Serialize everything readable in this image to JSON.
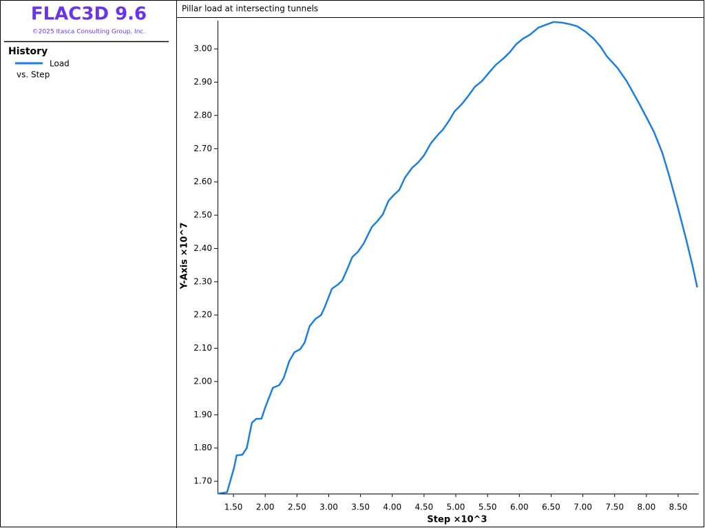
{
  "app": {
    "title": "FLAC3D 9.6",
    "copyright": "©2025 Itasca Consulting Group, Inc."
  },
  "sidebar": {
    "heading": "History",
    "vs": "vs. Step"
  },
  "chart_data": {
    "type": "line",
    "title": "Pillar load at intersecting tunnels",
    "xlabel": "Step ×10^3",
    "ylabel": "Y-Axis ×10^7",
    "x": [
      1.25,
      1.4,
      1.51,
      1.55,
      1.64,
      1.71,
      1.79,
      1.86,
      1.94,
      2.01,
      2.12,
      2.22,
      2.29,
      2.38,
      2.46,
      2.55,
      2.62,
      2.7,
      2.79,
      2.88,
      2.94,
      3.05,
      3.14,
      3.21,
      3.29,
      3.37,
      3.46,
      3.55,
      3.68,
      3.76,
      3.85,
      3.94,
      4.02,
      4.11,
      4.2,
      4.31,
      4.41,
      4.5,
      4.61,
      4.72,
      4.8,
      4.89,
      4.98,
      5.09,
      5.19,
      5.3,
      5.41,
      5.52,
      5.63,
      5.76,
      5.85,
      5.95,
      6.06,
      6.17,
      6.3,
      6.41,
      6.54,
      6.67,
      6.8,
      6.91,
      7.04,
      7.17,
      7.28,
      7.38,
      7.54,
      7.69,
      7.86,
      8.01,
      8.12,
      8.25,
      8.36,
      8.49,
      8.62,
      8.73,
      8.8
    ],
    "series": [
      {
        "name": "Load",
        "color": "#1a7de0",
        "values": [
          1.663,
          1.667,
          1.741,
          1.778,
          1.78,
          1.8,
          1.876,
          1.888,
          1.888,
          1.927,
          1.981,
          1.989,
          2.01,
          2.062,
          2.088,
          2.097,
          2.117,
          2.167,
          2.188,
          2.2,
          2.225,
          2.279,
          2.291,
          2.303,
          2.337,
          2.374,
          2.39,
          2.415,
          2.465,
          2.481,
          2.502,
          2.543,
          2.56,
          2.576,
          2.613,
          2.642,
          2.659,
          2.68,
          2.717,
          2.742,
          2.758,
          2.783,
          2.812,
          2.833,
          2.857,
          2.886,
          2.903,
          2.928,
          2.952,
          2.973,
          2.99,
          3.014,
          3.031,
          3.043,
          3.064,
          3.072,
          3.081,
          3.079,
          3.074,
          3.068,
          3.052,
          3.031,
          3.006,
          2.977,
          2.944,
          2.903,
          2.845,
          2.791,
          2.75,
          2.688,
          2.618,
          2.527,
          2.432,
          2.345,
          2.283
        ]
      }
    ],
    "xlim": [
      1.25,
      8.825
    ],
    "ylim": [
      1.663,
      3.085
    ],
    "xticks": [
      {
        "value": 1.5,
        "label": "1.50"
      },
      {
        "value": 2,
        "label": "2.00"
      },
      {
        "value": 2.5,
        "label": "2.50"
      },
      {
        "value": 3,
        "label": "3.00"
      },
      {
        "value": 3.5,
        "label": "3.50"
      },
      {
        "value": 4,
        "label": "4.00"
      },
      {
        "value": 4.5,
        "label": "4.50"
      },
      {
        "value": 5,
        "label": "5.00"
      },
      {
        "value": 5.5,
        "label": "5.50"
      },
      {
        "value": 6,
        "label": "6.00"
      },
      {
        "value": 6.5,
        "label": "6.50"
      },
      {
        "value": 7,
        "label": "7.00"
      },
      {
        "value": 7.5,
        "label": "7.50"
      },
      {
        "value": 8,
        "label": "8.00"
      },
      {
        "value": 8.5,
        "label": "8.50"
      }
    ],
    "yticks": [
      {
        "value": 1.7,
        "label": "1.70"
      },
      {
        "value": 1.8,
        "label": "1.80"
      },
      {
        "value": 1.9,
        "label": "1.90"
      },
      {
        "value": 2,
        "label": "2.00"
      },
      {
        "value": 2.1,
        "label": "2.10"
      },
      {
        "value": 2.2,
        "label": "2.20"
      },
      {
        "value": 2.3,
        "label": "2.30"
      },
      {
        "value": 2.4,
        "label": "2.40"
      },
      {
        "value": 2.5,
        "label": "2.50"
      },
      {
        "value": 2.6,
        "label": "2.60"
      },
      {
        "value": 2.7,
        "label": "2.70"
      },
      {
        "value": 2.8,
        "label": "2.80"
      },
      {
        "value": 2.9,
        "label": "2.90"
      },
      {
        "value": 3,
        "label": "3.00"
      }
    ]
  }
}
